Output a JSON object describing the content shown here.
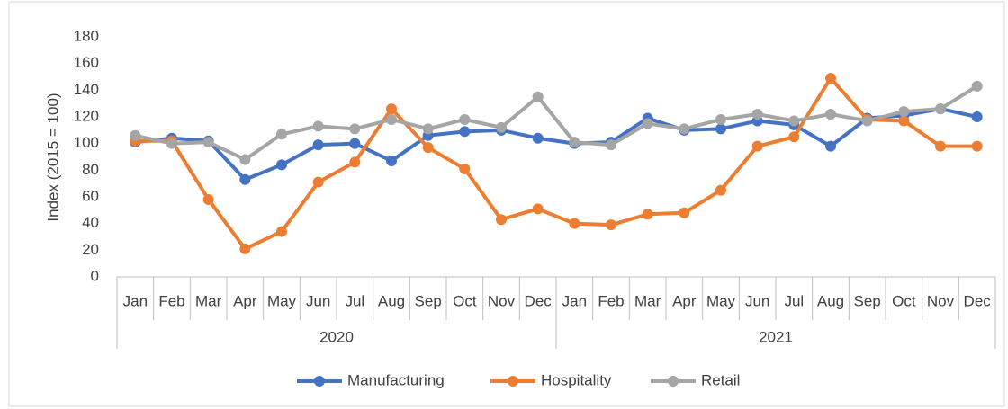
{
  "chart_data": {
    "type": "line",
    "y_label": "Index (2015 = 100)",
    "categories": [
      "Jan",
      "Feb",
      "Mar",
      "Apr",
      "May",
      "Jun",
      "Jul",
      "Aug",
      "Sep",
      "Oct",
      "Nov",
      "Dec",
      "Jan",
      "Feb",
      "Mar",
      "Apr",
      "May",
      "Jun",
      "Jul",
      "Aug",
      "Sep",
      "Oct",
      "Nov",
      "Dec"
    ],
    "groups": [
      "2020",
      "2021"
    ],
    "series": [
      {
        "name": "Manufacturing",
        "color": "#4472c4",
        "values": [
          101,
          104,
          102,
          73,
          84,
          99,
          100,
          87,
          106,
          109,
          110,
          104,
          100,
          101,
          119,
          110,
          111,
          117,
          114,
          98,
          119,
          121,
          126,
          120
        ]
      },
      {
        "name": "Hospitality",
        "color": "#ed7d31",
        "values": [
          102,
          102,
          58,
          21,
          34,
          71,
          86,
          126,
          97,
          81,
          43,
          51,
          40,
          39,
          47,
          48,
          65,
          98,
          105,
          149,
          118,
          117,
          98,
          98
        ]
      },
      {
        "name": "Retail",
        "color": "#a5a5a5",
        "values": [
          106,
          100,
          101,
          88,
          107,
          113,
          111,
          118,
          111,
          118,
          112,
          135,
          101,
          99,
          115,
          111,
          118,
          122,
          117,
          122,
          117,
          124,
          126,
          143
        ]
      }
    ],
    "ylim": [
      0,
      180
    ],
    "yticks": [
      0,
      20,
      40,
      60,
      80,
      100,
      120,
      140,
      160,
      180
    ],
    "grid": false,
    "legend": "bottom"
  }
}
